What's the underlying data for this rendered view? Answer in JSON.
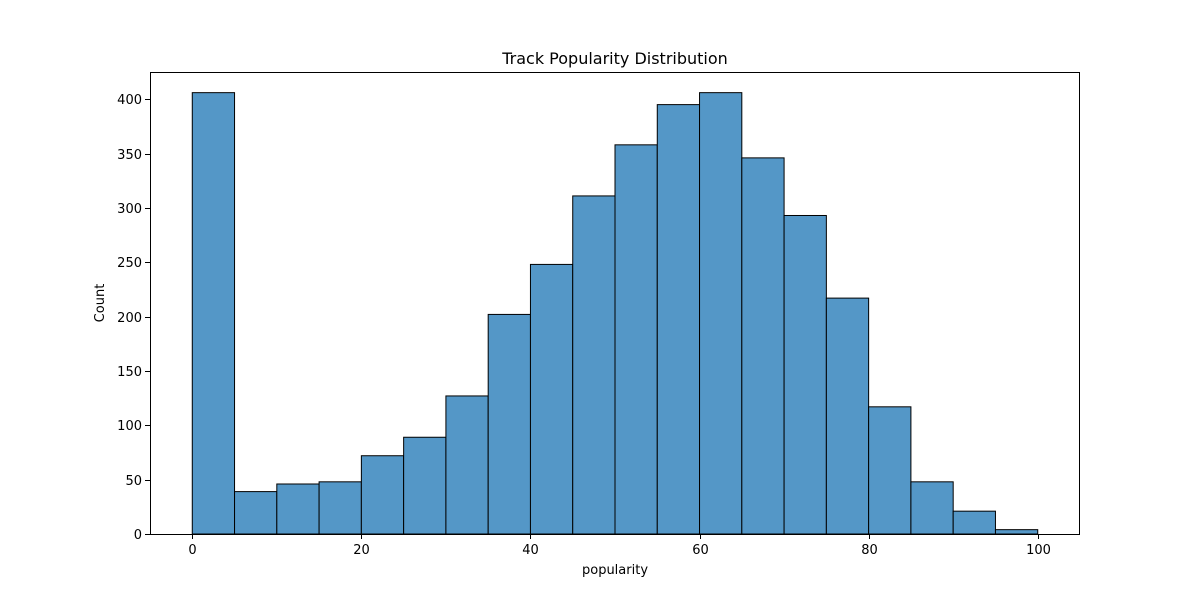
{
  "chart_data": {
    "type": "bar",
    "title": "Track Popularity Distribution",
    "xlabel": "popularity",
    "ylabel": "Count",
    "bin_width": 5,
    "bin_starts": [
      0,
      5,
      10,
      15,
      20,
      25,
      30,
      35,
      40,
      45,
      50,
      55,
      60,
      65,
      70,
      75,
      80,
      85,
      90,
      95
    ],
    "values": [
      406,
      39,
      46,
      48,
      72,
      89,
      127,
      202,
      248,
      311,
      358,
      395,
      406,
      346,
      293,
      217,
      117,
      48,
      21,
      4
    ],
    "xlim": [
      -5,
      105
    ],
    "ylim": [
      0,
      425
    ],
    "xticks": [
      0,
      20,
      40,
      60,
      80,
      100
    ],
    "yticks": [
      0,
      50,
      100,
      150,
      200,
      250,
      300,
      350,
      400
    ],
    "grid": false,
    "bar_color": "#5497c7",
    "edge_color": "#000000"
  }
}
